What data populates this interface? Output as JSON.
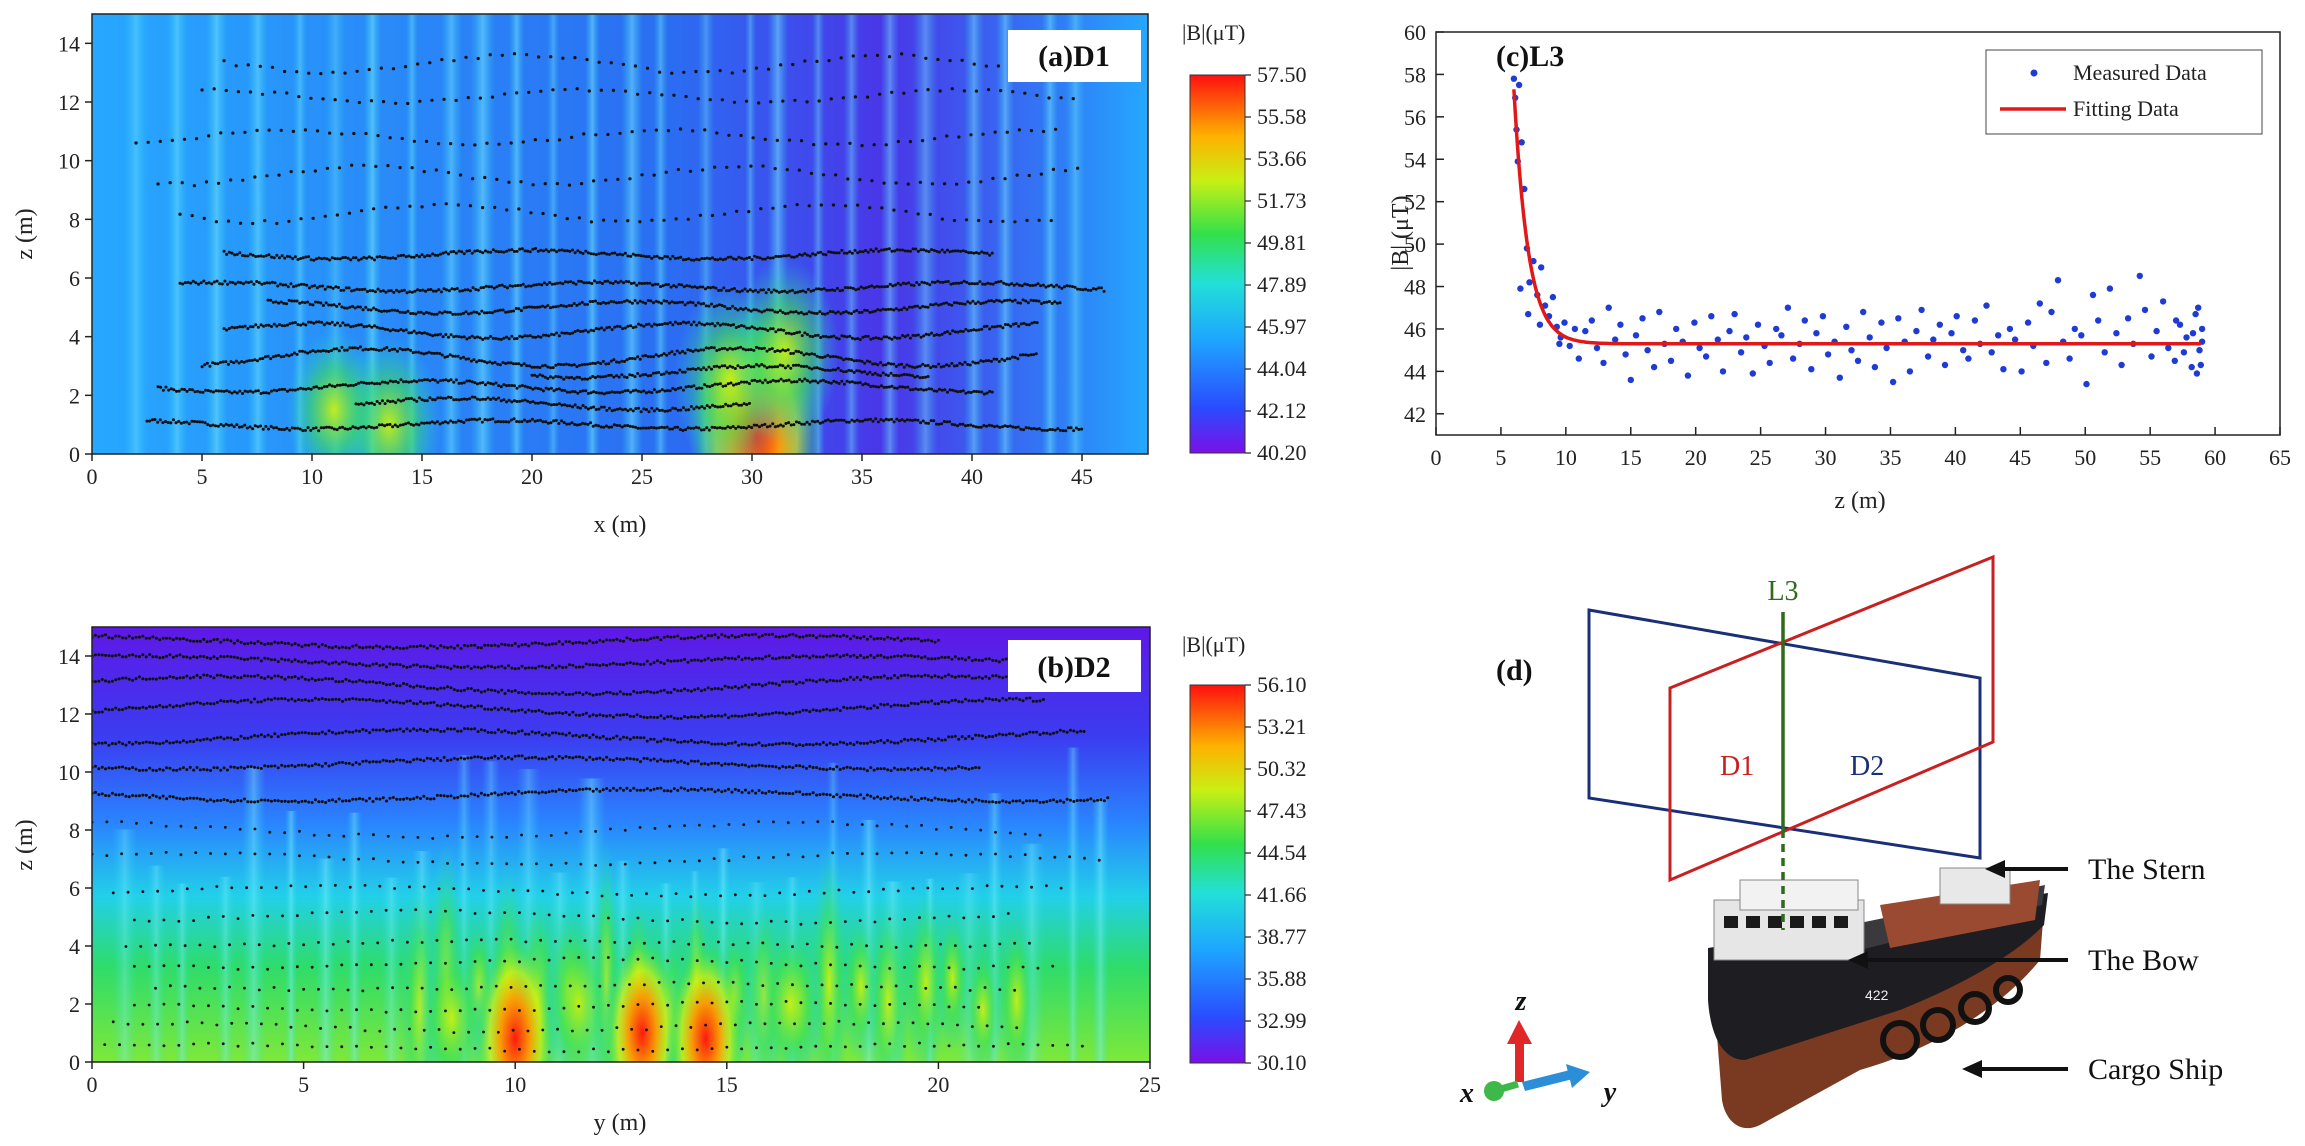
{
  "colors": {
    "map_low": "#6a0fe6",
    "map_mid": "#1e9bff",
    "red": "#e01818",
    "blue": "#1f3bd6",
    "plane_d1": "#c82020",
    "plane_d2": "#1a2f78",
    "line_l3": "#2e6b1a"
  },
  "chart_data": [
    {
      "id": "a",
      "type": "heatmap",
      "title": "(a)D1",
      "xlabel": "x (m)",
      "ylabel": "z (m)",
      "xlim": [
        0,
        48
      ],
      "ylim": [
        0,
        15
      ],
      "xticks": [
        "0",
        "5",
        "10",
        "15",
        "20",
        "25",
        "30",
        "35",
        "40",
        "45"
      ],
      "yticks": [
        "0",
        "2",
        "4",
        "6",
        "8",
        "10",
        "12",
        "14"
      ],
      "colorbar_title": "|B|(μT)",
      "colorbar_ticks": [
        "57.50",
        "55.58",
        "53.66",
        "51.73",
        "49.81",
        "47.89",
        "45.97",
        "44.04",
        "42.12",
        "40.20"
      ],
      "hotspots": [
        {
          "x": 30.2,
          "z": 0.6,
          "level": 0.95
        },
        {
          "x": 29.0,
          "z": 2.5,
          "level": 0.65
        },
        {
          "x": 31.5,
          "z": 3.5,
          "level": 0.6
        },
        {
          "x": 13.5,
          "z": 1.0,
          "level": 0.55
        },
        {
          "x": 11.0,
          "z": 1.5,
          "level": 0.45
        }
      ]
    },
    {
      "id": "b",
      "type": "heatmap",
      "title": "(b)D2",
      "xlabel": "y (m)",
      "ylabel": "z (m)",
      "xlim": [
        0,
        25
      ],
      "ylim": [
        0,
        15
      ],
      "xticks": [
        "0",
        "5",
        "10",
        "15",
        "20",
        "25"
      ],
      "yticks": [
        "0",
        "2",
        "4",
        "6",
        "8",
        "10",
        "12",
        "14"
      ],
      "colorbar_title": "|B|(μT)",
      "colorbar_ticks": [
        "56.10",
        "53.21",
        "50.32",
        "47.43",
        "44.54",
        "41.66",
        "38.77",
        "35.88",
        "32.99",
        "30.10"
      ],
      "hotspots": [
        {
          "y": 10.0,
          "z": 0.8,
          "level": 0.95
        },
        {
          "y": 13.0,
          "z": 1.0,
          "level": 0.85
        },
        {
          "y": 14.5,
          "z": 0.8,
          "level": 0.85
        },
        {
          "y": 11.5,
          "z": 2.0,
          "level": 0.7
        },
        {
          "y": 8.5,
          "z": 1.5,
          "level": 0.6
        },
        {
          "y": 16.5,
          "z": 2.0,
          "level": 0.6
        }
      ]
    },
    {
      "id": "c",
      "type": "scatter",
      "title": "(c)L3",
      "xlabel": "z (m)",
      "ylabel": "|B| (μT)",
      "xlim": [
        0,
        65
      ],
      "ylim": [
        41,
        60
      ],
      "xticks": [
        0,
        5,
        10,
        15,
        20,
        25,
        30,
        35,
        40,
        45,
        50,
        55,
        60,
        65
      ],
      "yticks": [
        42,
        44,
        46,
        48,
        50,
        52,
        54,
        56,
        58,
        60
      ],
      "legend": [
        "Measured Data",
        "Fitting Data"
      ],
      "series": [
        {
          "name": "Measured Data",
          "points": [
            [
              6.0,
              57.8
            ],
            [
              6.1,
              56.9
            ],
            [
              6.2,
              55.4
            ],
            [
              6.3,
              53.9
            ],
            [
              6.4,
              57.5
            ],
            [
              6.6,
              54.8
            ],
            [
              6.8,
              52.6
            ],
            [
              7.0,
              49.8
            ],
            [
              7.2,
              48.2
            ],
            [
              7.5,
              49.2
            ],
            [
              7.8,
              47.6
            ],
            [
              8.1,
              48.9
            ],
            [
              8.4,
              47.1
            ],
            [
              8.7,
              46.6
            ],
            [
              9.0,
              47.5
            ],
            [
              9.3,
              46.1
            ],
            [
              9.6,
              45.6
            ],
            [
              9.9,
              46.3
            ],
            [
              10.3,
              45.2
            ],
            [
              10.7,
              46.0
            ],
            [
              6.5,
              47.9
            ],
            [
              7.1,
              46.7
            ],
            [
              8.0,
              46.2
            ],
            [
              9.5,
              45.3
            ],
            [
              11.0,
              44.6
            ],
            [
              11.5,
              45.9
            ],
            [
              12.0,
              46.4
            ],
            [
              12.4,
              45.1
            ],
            [
              12.9,
              44.4
            ],
            [
              13.3,
              47.0
            ],
            [
              13.8,
              45.5
            ],
            [
              14.2,
              46.2
            ],
            [
              14.6,
              44.8
            ],
            [
              15.0,
              43.6
            ],
            [
              15.4,
              45.7
            ],
            [
              15.9,
              46.5
            ],
            [
              16.3,
              45.0
            ],
            [
              16.8,
              44.2
            ],
            [
              17.2,
              46.8
            ],
            [
              17.6,
              45.3
            ],
            [
              18.1,
              44.5
            ],
            [
              18.5,
              46.0
            ],
            [
              19.0,
              45.4
            ],
            [
              19.4,
              43.8
            ],
            [
              19.9,
              46.3
            ],
            [
              20.3,
              45.1
            ],
            [
              20.8,
              44.7
            ],
            [
              21.2,
              46.6
            ],
            [
              21.7,
              45.5
            ],
            [
              22.1,
              44.0
            ],
            [
              22.6,
              45.9
            ],
            [
              23.0,
              46.7
            ],
            [
              23.5,
              44.9
            ],
            [
              23.9,
              45.6
            ],
            [
              24.4,
              43.9
            ],
            [
              24.8,
              46.2
            ],
            [
              25.3,
              45.2
            ],
            [
              25.7,
              44.4
            ],
            [
              26.2,
              46.0
            ],
            [
              26.6,
              45.7
            ],
            [
              27.1,
              47.0
            ],
            [
              27.5,
              44.6
            ],
            [
              28.0,
              45.3
            ],
            [
              28.4,
              46.4
            ],
            [
              28.9,
              44.1
            ],
            [
              29.3,
              45.8
            ],
            [
              29.8,
              46.6
            ],
            [
              30.2,
              44.8
            ],
            [
              30.7,
              45.4
            ],
            [
              31.1,
              43.7
            ],
            [
              31.6,
              46.1
            ],
            [
              32.0,
              45.0
            ],
            [
              32.5,
              44.5
            ],
            [
              32.9,
              46.8
            ],
            [
              33.4,
              45.6
            ],
            [
              33.8,
              44.2
            ],
            [
              34.3,
              46.3
            ],
            [
              34.7,
              45.1
            ],
            [
              35.2,
              43.5
            ],
            [
              35.6,
              46.5
            ],
            [
              36.1,
              45.4
            ],
            [
              36.5,
              44.0
            ],
            [
              37.0,
              45.9
            ],
            [
              37.4,
              46.9
            ],
            [
              37.9,
              44.7
            ],
            [
              38.3,
              45.5
            ],
            [
              38.8,
              46.2
            ],
            [
              39.2,
              44.3
            ],
            [
              39.7,
              45.8
            ],
            [
              40.1,
              46.6
            ],
            [
              40.6,
              45.0
            ],
            [
              41.0,
              44.6
            ],
            [
              41.5,
              46.4
            ],
            [
              41.9,
              45.3
            ],
            [
              42.4,
              47.1
            ],
            [
              42.8,
              44.9
            ],
            [
              43.3,
              45.7
            ],
            [
              43.7,
              44.1
            ],
            [
              44.2,
              46.0
            ],
            [
              44.6,
              45.5
            ],
            [
              45.1,
              44.0
            ],
            [
              45.6,
              46.3
            ],
            [
              46.0,
              45.2
            ],
            [
              46.5,
              47.2
            ],
            [
              47.0,
              44.4
            ],
            [
              47.4,
              46.8
            ],
            [
              47.9,
              48.3
            ],
            [
              48.3,
              45.4
            ],
            [
              48.8,
              44.6
            ],
            [
              49.2,
              46.0
            ],
            [
              49.7,
              45.7
            ],
            [
              50.1,
              43.4
            ],
            [
              50.6,
              47.6
            ],
            [
              51.0,
              46.4
            ],
            [
              51.5,
              44.9
            ],
            [
              51.9,
              47.9
            ],
            [
              52.4,
              45.8
            ],
            [
              52.8,
              44.3
            ],
            [
              53.3,
              46.5
            ],
            [
              53.7,
              45.3
            ],
            [
              54.2,
              48.5
            ],
            [
              54.6,
              46.9
            ],
            [
              55.1,
              44.7
            ],
            [
              55.5,
              45.9
            ],
            [
              56.0,
              47.3
            ],
            [
              56.4,
              45.1
            ],
            [
              56.9,
              44.5
            ],
            [
              57.3,
              46.2
            ],
            [
              57.8,
              45.6
            ],
            [
              58.2,
              44.2
            ],
            [
              58.5,
              46.7
            ],
            [
              58.7,
              47.0
            ],
            [
              58.8,
              45.0
            ],
            [
              58.9,
              44.3
            ],
            [
              59.0,
              46.0
            ],
            [
              59.0,
              45.4
            ],
            [
              58.6,
              43.9
            ],
            [
              58.3,
              45.8
            ],
            [
              57.6,
              44.9
            ],
            [
              57.0,
              46.4
            ]
          ]
        },
        {
          "name": "Fitting Data",
          "model": {
            "a": 45.3,
            "b": 12.0,
            "x0": 6.0,
            "k": 0.55
          },
          "x_range": [
            6,
            59
          ]
        }
      ]
    }
  ],
  "panel_d": {
    "label": "(d)",
    "line_label": "L3",
    "plane_d1_label": "D1",
    "plane_d2_label": "D2",
    "axis_x": "x",
    "axis_y": "y",
    "axis_z": "z",
    "callouts": [
      "The Stern",
      "The Bow",
      "Cargo Ship"
    ]
  }
}
